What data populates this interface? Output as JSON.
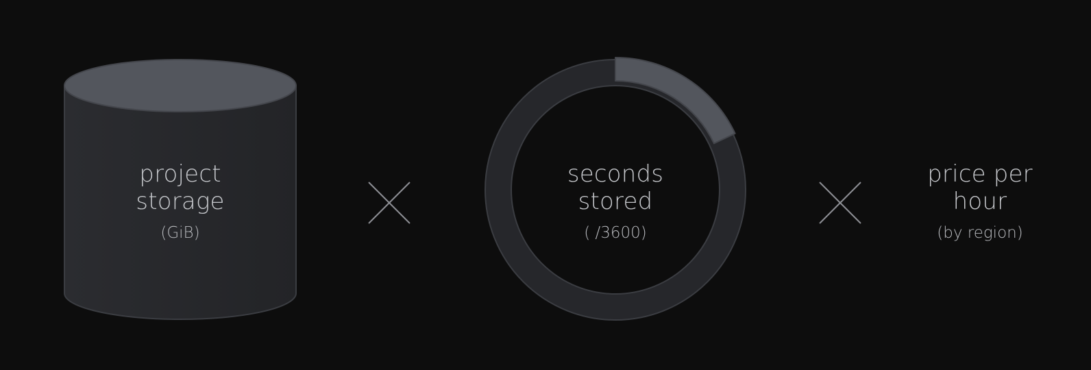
{
  "factors": [
    {
      "line1": "project",
      "line2": "storage",
      "sub": "(GiB)",
      "icon": "storage-cylinder-icon"
    },
    {
      "line1": "seconds",
      "line2": "stored",
      "sub": "( /3600)",
      "icon": "time-ring-icon"
    },
    {
      "line1": "price per",
      "line2": "hour",
      "sub": "(by region)",
      "icon": "none"
    }
  ],
  "operators": [
    "multiply-icon",
    "multiply-icon"
  ],
  "ring_fill_fraction": 0.18,
  "colors": {
    "background": "#0d0d0d",
    "shape_dark": "#26272b",
    "shape_light": "#53565d",
    "stroke": "#3b3d42",
    "text": "#c7c9cd",
    "operator": "#8d8f94"
  }
}
